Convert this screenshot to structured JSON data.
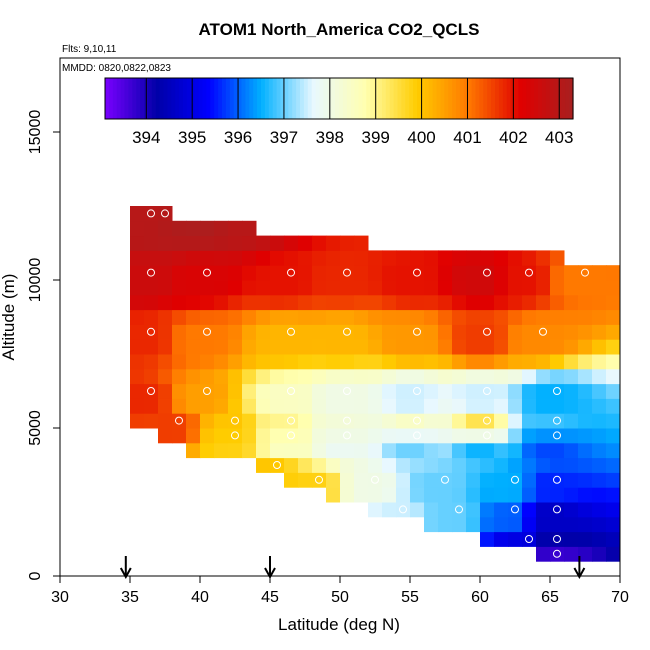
{
  "chart_data": {
    "type": "heatmap",
    "title": "ATOM1 North_America CO2_QCLS",
    "flights_label": "Flts: 9,10,11",
    "dates_label": "MMDD: 0820,0822,0823",
    "xlabel": "Latitude (deg N)",
    "ylabel": "Altitude (m)",
    "xlim": [
      30,
      70
    ],
    "ylim": [
      0,
      17500
    ],
    "x_ticks": [
      "30",
      "35",
      "40",
      "45",
      "50",
      "55",
      "60",
      "65",
      "70"
    ],
    "y_ticks": [
      "0",
      "5000",
      "10000",
      "15000"
    ],
    "colorbar": {
      "range": [
        393.1,
        403.3
      ],
      "tick_labels": [
        "394",
        "395",
        "396",
        "397",
        "398",
        "399",
        "400",
        "401",
        "402",
        "403"
      ],
      "colors": [
        "#7a00ff",
        "#0000a8",
        "#0000ff",
        "#00b0ff",
        "#e8f8ff",
        "#ffffb0",
        "#ffcc00",
        "#ff7700",
        "#e00000",
        "#a82020"
      ]
    },
    "arrows_latitude": [
      34.7,
      45,
      67.1
    ],
    "grid_bins": {
      "lat_start": 30,
      "lat_step": 1,
      "alt_start": 0,
      "alt_step": 500,
      "cells": [
        [
          36,
          12500,
          403.0
        ],
        [
          37,
          12500,
          403.0
        ],
        [
          36,
          12000,
          403.0
        ],
        [
          37,
          12000,
          403.0
        ],
        [
          38,
          12000,
          403.2
        ],
        [
          40,
          12000,
          403.2
        ],
        [
          43,
          12000,
          403.0
        ],
        [
          36,
          10000,
          402.6
        ],
        [
          40,
          10000,
          402.3
        ],
        [
          46,
          10000,
          402.0
        ],
        [
          50,
          10000,
          401.8
        ],
        [
          55,
          10000,
          402.0
        ],
        [
          60,
          10000,
          402.5
        ],
        [
          63,
          10000,
          402.0
        ],
        [
          67,
          10000,
          401.0
        ],
        [
          36,
          8000,
          401.8
        ],
        [
          40,
          8000,
          401.0
        ],
        [
          46,
          8000,
          400.2
        ],
        [
          50,
          8000,
          400.2
        ],
        [
          55,
          8000,
          400.6
        ],
        [
          60,
          8000,
          401.6
        ],
        [
          64,
          8000,
          400.8
        ],
        [
          36,
          6000,
          401.8
        ],
        [
          40,
          6000,
          400.5
        ],
        [
          46,
          6000,
          398.5
        ],
        [
          50,
          6000,
          398.0
        ],
        [
          55,
          6000,
          397.5
        ],
        [
          60,
          6000,
          397.5
        ],
        [
          65,
          6000,
          396.5
        ],
        [
          38,
          5000,
          401.6
        ],
        [
          42,
          5000,
          400.0
        ],
        [
          46,
          5000,
          399.0
        ],
        [
          50,
          5000,
          398.2
        ],
        [
          55,
          5000,
          398.5
        ],
        [
          60,
          5000,
          399.5
        ],
        [
          65,
          5000,
          396.8
        ],
        [
          42,
          4500,
          399.8
        ],
        [
          46,
          4500,
          398.5
        ],
        [
          50,
          4500,
          397.8
        ],
        [
          55,
          4500,
          397.0
        ],
        [
          60,
          4500,
          396.5
        ],
        [
          65,
          4500,
          395.8
        ],
        [
          45,
          3500,
          400.0
        ],
        [
          48,
          3000,
          399.8
        ],
        [
          52,
          3000,
          398.0
        ],
        [
          57,
          3000,
          397.0
        ],
        [
          62,
          3000,
          396.5
        ],
        [
          65,
          3000,
          395.6
        ],
        [
          54,
          2000,
          397.5
        ],
        [
          58,
          2000,
          397.0
        ],
        [
          62,
          2000,
          396.0
        ],
        [
          65,
          2000,
          394.6
        ],
        [
          63,
          1000,
          395.0
        ],
        [
          65,
          1000,
          394.2
        ],
        [
          65,
          500,
          393.2
        ]
      ]
    }
  }
}
